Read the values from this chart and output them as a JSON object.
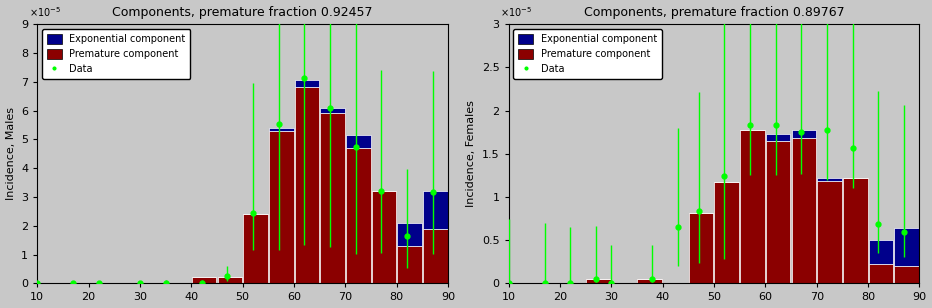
{
  "left": {
    "title": "Components, premature fraction 0.92457",
    "ylabel": "Incidence, Males",
    "xlim": [
      10,
      90
    ],
    "ylim": [
      0,
      9e-05
    ],
    "yticks": [
      0,
      1e-05,
      2e-05,
      3e-05,
      4e-05,
      5e-05,
      6e-05,
      7e-05,
      8e-05,
      9e-05
    ],
    "ytick_labels": [
      "0",
      "1",
      "2",
      "3",
      "4",
      "5",
      "6",
      "7",
      "8",
      "9"
    ],
    "xticks": [
      10,
      20,
      30,
      40,
      50,
      60,
      70,
      80,
      90
    ],
    "bar_centers": [
      12.5,
      17.5,
      22.5,
      27.5,
      32.5,
      37.5,
      42.5,
      47.5,
      52.5,
      57.5,
      62.5,
      67.5,
      72.5,
      77.5,
      82.5,
      87.5
    ],
    "bar_premature": [
      0.0,
      0.0,
      0.0,
      0.0,
      0.0,
      0.0,
      2.3e-06,
      2.3e-06,
      2.4e-05,
      5.3e-05,
      6.8e-05,
      5.9e-05,
      4.7e-05,
      3.2e-05,
      1.3e-05,
      1.9e-05
    ],
    "bar_exponential": [
      0.0,
      0.0,
      0.0,
      0.0,
      0.0,
      0.0,
      0.0,
      0.0,
      0.0,
      1e-06,
      2.5e-06,
      2e-06,
      4.5e-06,
      0.0,
      8e-06,
      1.3e-05
    ],
    "data_x": [
      10,
      17,
      22,
      30,
      35,
      42,
      47,
      52,
      57,
      62,
      67,
      72,
      77,
      82,
      87
    ],
    "data_y": [
      0.0,
      0.0,
      0.0,
      0.0,
      2.5e-07,
      2.5e-07,
      2.45e-06,
      2.45e-05,
      5.55e-05,
      7.14e-05,
      6.1e-05,
      4.72e-05,
      3.2e-05,
      1.63e-05,
      3.18e-05
    ],
    "data_yerr_low": [
      0.0,
      0.0,
      0.0,
      0.0,
      2e-07,
      2e-07,
      1.5e-06,
      1.3e-05,
      4.4e-05,
      5.8e-05,
      4.85e-05,
      3.7e-05,
      2.15e-05,
      1.1e-05,
      2.15e-05
    ],
    "data_yerr_high": [
      6e-07,
      5e-07,
      7e-07,
      3e-07,
      1e-06,
      1e-06,
      3.5e-06,
      4.5e-05,
      6.6e-05,
      8.4e-05,
      7.45e-05,
      6e-05,
      4.2e-05,
      2.35e-05,
      4.2e-05
    ]
  },
  "right": {
    "title": "Components, premature fraction 0.89767",
    "ylabel": "Incidence, Females",
    "xlim": [
      10,
      90
    ],
    "ylim": [
      0,
      3e-05
    ],
    "yticks": [
      0,
      5e-06,
      1e-05,
      1.5e-05,
      2e-05,
      2.5e-05,
      3e-05
    ],
    "ytick_labels": [
      "0",
      "0.5",
      "1",
      "1.5",
      "2",
      "2.5",
      "3"
    ],
    "xticks": [
      10,
      20,
      30,
      40,
      50,
      60,
      70,
      80,
      90
    ],
    "bar_centers": [
      12.5,
      17.5,
      22.5,
      27.5,
      32.5,
      37.5,
      42.5,
      47.5,
      52.5,
      57.5,
      62.5,
      67.5,
      72.5,
      77.5,
      82.5,
      87.5
    ],
    "bar_premature": [
      0.0,
      0.0,
      0.0,
      5.5e-07,
      0.0,
      5.5e-07,
      0.0,
      8.2e-06,
      1.17e-05,
      1.77e-05,
      1.65e-05,
      1.68e-05,
      1.18e-05,
      1.22e-05,
      2.2e-06,
      2e-06
    ],
    "bar_exponential": [
      0.0,
      0.0,
      0.0,
      0.0,
      0.0,
      0.0,
      0.0,
      0.0,
      0.0,
      1e-07,
      8e-07,
      9e-07,
      4e-07,
      0.0,
      2.8e-06,
      4.4e-06
    ],
    "data_x": [
      10,
      17,
      22,
      27,
      30,
      38,
      43,
      47,
      52,
      57,
      62,
      67,
      72,
      77,
      82,
      87
    ],
    "data_y": [
      0.0,
      0.0,
      2e-08,
      5e-07,
      0.0,
      5e-07,
      6.5e-06,
      8.4e-06,
      1.24e-05,
      1.83e-05,
      1.83e-05,
      1.75e-05,
      1.78e-05,
      1.57e-05,
      6.9e-06,
      5.9e-06
    ],
    "data_yerr_low": [
      0.0,
      0.0,
      1e-08,
      3e-07,
      0.0,
      3e-07,
      4.5e-06,
      6e-06,
      9.6e-06,
      5.7e-06,
      5.7e-06,
      4.8e-06,
      5.8e-06,
      4.7e-06,
      3.4e-06,
      2.9e-06
    ],
    "data_yerr_high": [
      7.5e-06,
      7e-06,
      6.5e-06,
      6.2e-06,
      4.5e-06,
      4e-06,
      1.15e-05,
      1.38e-05,
      1.86e-05,
      2.52e-05,
      2.45e-05,
      2.52e-05,
      2.53e-05,
      2e-05,
      1.54e-05,
      1.47e-05
    ]
  },
  "bar_color_premature": "#8B0000",
  "bar_color_exponential": "#00008B",
  "data_color": "#00FF00",
  "bar_width": 4.8,
  "legend_labels": [
    "Exponential component",
    "Premature component",
    "Data"
  ],
  "bg_color": "#c8c8c8",
  "title_fontsize": 9,
  "label_fontsize": 8,
  "tick_fontsize": 8
}
